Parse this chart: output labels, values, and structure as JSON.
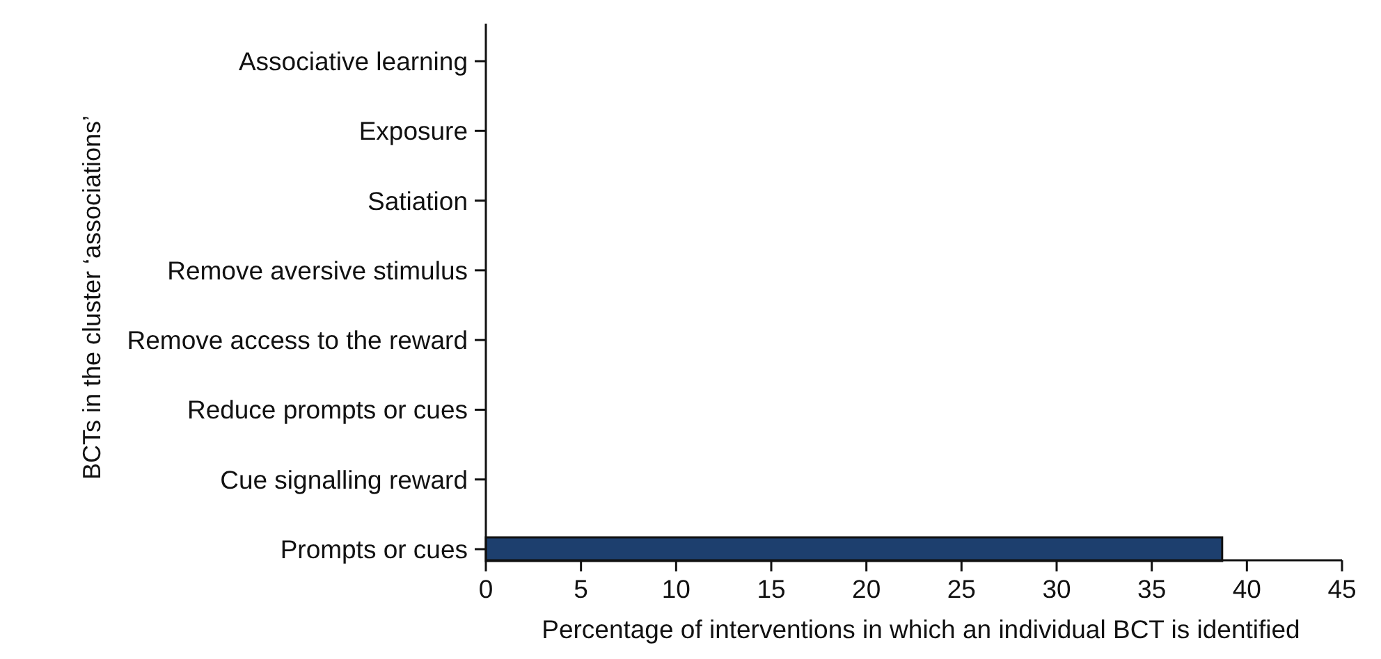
{
  "chart_data": {
    "type": "bar",
    "orientation": "horizontal",
    "xlabel": "Percentage of interventions in which an individual BCT is identified",
    "ylabel": "BCTs in the cluster ‘associations’",
    "categories": [
      "Associative learning",
      "Exposure",
      "Satiation",
      "Remove aversive stimulus",
      "Remove access to the reward",
      "Reduce prompts or cues",
      "Cue signalling reward",
      "Prompts or cues"
    ],
    "values": [
      0,
      0,
      0,
      0,
      0,
      0,
      0,
      38.7
    ],
    "color": "#1d3f6e",
    "xlim": [
      0,
      45
    ],
    "xticks": [
      0,
      5,
      10,
      15,
      20,
      25,
      30,
      35,
      40,
      45
    ]
  }
}
